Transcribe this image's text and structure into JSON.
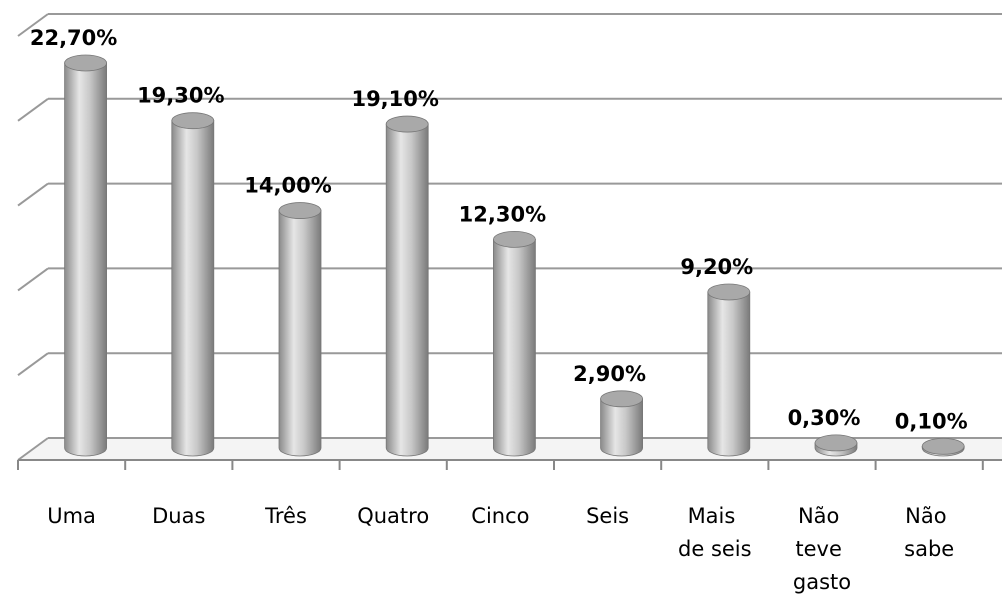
{
  "chart_data": {
    "type": "bar",
    "categories": [
      "Uma",
      "Duas",
      "Três",
      "Quatro",
      "Cinco",
      "Seis",
      "Mais de seis",
      "Não teve gasto",
      "Não sabe"
    ],
    "values": [
      22.7,
      19.3,
      14.0,
      19.1,
      12.3,
      2.9,
      9.2,
      0.3,
      0.1
    ],
    "value_labels": [
      "22,70%",
      "19,30%",
      "14,00%",
      "19,10%",
      "12,30%",
      "2,90%",
      "9,20%",
      "0,30%",
      "0,10%"
    ],
    "color": "#b8b8b8",
    "ylim": [
      0,
      25
    ],
    "yticks": [
      0,
      5,
      10,
      15,
      20,
      25
    ],
    "grid": true
  }
}
